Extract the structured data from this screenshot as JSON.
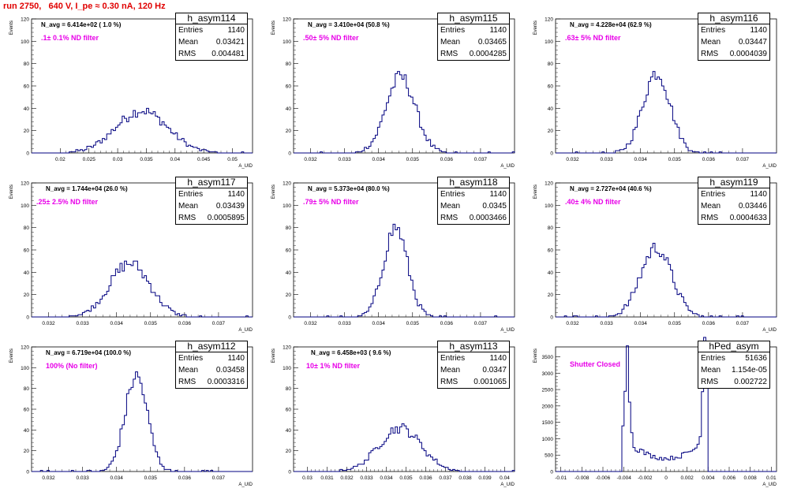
{
  "title": "run 2750,   640 V, I_pe ≈ 0.30 nA, 120 Hz",
  "colors": {
    "title": "#e00000",
    "annotation": "#e800e8",
    "hist": "#000080"
  },
  "axis_labels": {
    "y": "Events",
    "x": "A_UID"
  },
  "stats_labels": {
    "entries": "Entries",
    "mean": "Mean",
    "rms": "RMS"
  },
  "chart_data": [
    {
      "type": "bar",
      "name": "h_asym114",
      "entries": "1140",
      "mean": "0.03421",
      "rms": "0.004481",
      "navg": "N_avg = 6.414e+02 ( 1.0 %)",
      "filter": ".1± 0.1% ND filter",
      "xlim": [
        0.015,
        0.0535
      ],
      "ylim": [
        0,
        120
      ],
      "xticks": [
        0.02,
        0.025,
        0.03,
        0.035,
        0.04,
        0.045,
        0.05
      ],
      "xtick_labels": [
        "0.02",
        "0.025",
        "0.03",
        "0.035",
        "0.04",
        "0.045",
        "0.05"
      ],
      "yticks": [
        0,
        20,
        40,
        60,
        80,
        100,
        120
      ],
      "gauss_center": 0.0342,
      "gauss_sigma": 0.0045,
      "gauss_peak": 38
    },
    {
      "type": "bar",
      "name": "h_asym115",
      "entries": "1140",
      "mean": "0.03465",
      "rms": "0.0004285",
      "navg": "N_avg = 3.410e+04 (50.8 %)",
      "filter": ".50± 5% ND filter",
      "xlim": [
        0.0315,
        0.038
      ],
      "ylim": [
        0,
        120
      ],
      "xticks": [
        0.032,
        0.033,
        0.034,
        0.035,
        0.036,
        0.037
      ],
      "xtick_labels": [
        "0.032",
        "0.033",
        "0.034",
        "0.035",
        "0.036",
        "0.037"
      ],
      "yticks": [
        0,
        20,
        40,
        60,
        80,
        100,
        120
      ],
      "gauss_center": 0.03465,
      "gauss_sigma": 0.00043,
      "gauss_peak": 68
    },
    {
      "type": "bar",
      "name": "h_asym116",
      "entries": "1140",
      "mean": "0.03447",
      "rms": "0.0004039",
      "navg": "N_avg = 4.228e+04 (62.9 %)",
      "filter": ".63± 5% ND filter",
      "xlim": [
        0.0315,
        0.038
      ],
      "ylim": [
        0,
        120
      ],
      "xticks": [
        0.032,
        0.033,
        0.034,
        0.035,
        0.036,
        0.037
      ],
      "xtick_labels": [
        "0.032",
        "0.033",
        "0.034",
        "0.035",
        "0.036",
        "0.037"
      ],
      "yticks": [
        0,
        20,
        40,
        60,
        80,
        100,
        120
      ],
      "gauss_center": 0.03447,
      "gauss_sigma": 0.0004,
      "gauss_peak": 72
    },
    {
      "type": "bar",
      "name": "h_asym117",
      "entries": "1140",
      "mean": "0.03439",
      "rms": "0.0005895",
      "navg": "N_avg = 1.744e+04 (26.0 %)",
      "filter": ".25± 2.5% ND filter",
      "xlim": [
        0.0315,
        0.038
      ],
      "ylim": [
        0,
        120
      ],
      "xticks": [
        0.032,
        0.033,
        0.034,
        0.035,
        0.036,
        0.037
      ],
      "xtick_labels": [
        "0.032",
        "0.033",
        "0.034",
        "0.035",
        "0.036",
        "0.037"
      ],
      "yticks": [
        0,
        20,
        40,
        60,
        80,
        100,
        120
      ],
      "gauss_center": 0.03439,
      "gauss_sigma": 0.00059,
      "gauss_peak": 48
    },
    {
      "type": "bar",
      "name": "h_asym118",
      "entries": "1140",
      "mean": "0.0345",
      "rms": "0.0003466",
      "navg": "N_avg = 5.373e+04 (80.0 %)",
      "filter": ".79± 5% ND filter",
      "xlim": [
        0.0315,
        0.038
      ],
      "ylim": [
        0,
        120
      ],
      "xticks": [
        0.032,
        0.033,
        0.034,
        0.035,
        0.036,
        0.037
      ],
      "xtick_labels": [
        "0.032",
        "0.033",
        "0.034",
        "0.035",
        "0.036",
        "0.037"
      ],
      "yticks": [
        0,
        20,
        40,
        60,
        80,
        100,
        120
      ],
      "gauss_center": 0.0345,
      "gauss_sigma": 0.00035,
      "gauss_peak": 80
    },
    {
      "type": "bar",
      "name": "h_asym119",
      "entries": "1140",
      "mean": "0.03446",
      "rms": "0.0004633",
      "navg": "N_avg = 2.727e+04 (40.6 %)",
      "filter": ".40± 4% ND filter",
      "xlim": [
        0.0315,
        0.038
      ],
      "ylim": [
        0,
        120
      ],
      "xticks": [
        0.032,
        0.033,
        0.034,
        0.035,
        0.036,
        0.037
      ],
      "xtick_labels": [
        "0.032",
        "0.033",
        "0.034",
        "0.035",
        "0.036",
        "0.037"
      ],
      "yticks": [
        0,
        20,
        40,
        60,
        80,
        100,
        120
      ],
      "gauss_center": 0.03446,
      "gauss_sigma": 0.00046,
      "gauss_peak": 62
    },
    {
      "type": "bar",
      "name": "h_asym112",
      "entries": "1140",
      "mean": "0.03458",
      "rms": "0.0003316",
      "navg": "N_avg = 6.719e+04 (100.0 %)",
      "filter": "100% (No filter)",
      "xlim": [
        0.0315,
        0.038
      ],
      "ylim": [
        0,
        120
      ],
      "xticks": [
        0.032,
        0.033,
        0.034,
        0.035,
        0.036,
        0.037
      ],
      "xtick_labels": [
        "0.032",
        "0.033",
        "0.034",
        "0.035",
        "0.036",
        "0.037"
      ],
      "yticks": [
        0,
        20,
        40,
        60,
        80,
        100,
        120
      ],
      "gauss_center": 0.03458,
      "gauss_sigma": 0.00033,
      "gauss_peak": 92
    },
    {
      "type": "bar",
      "name": "h_asym113",
      "entries": "1140",
      "mean": "0.0347",
      "rms": "0.001065",
      "navg": "N_avg = 6.458e+03 ( 9.6 %)",
      "filter": "10± 1% ND filter",
      "xlim": [
        0.0293,
        0.0405
      ],
      "ylim": [
        0,
        120
      ],
      "xticks": [
        0.03,
        0.031,
        0.032,
        0.033,
        0.034,
        0.035,
        0.036,
        0.037,
        0.038,
        0.039,
        0.04
      ],
      "xtick_labels": [
        "0.03",
        "0.031",
        "0.032",
        "0.033",
        "0.034",
        "0.035",
        "0.036",
        "0.037",
        "0.038",
        "0.039",
        "0.04"
      ],
      "yticks": [
        0,
        20,
        40,
        60,
        80,
        100,
        120
      ],
      "gauss_center": 0.0347,
      "gauss_sigma": 0.00107,
      "gauss_peak": 42
    },
    {
      "type": "bar",
      "name": "hPed_asym",
      "entries": "51636",
      "mean": "1.154e-05",
      "rms": "0.002722",
      "navg": "",
      "filter": "Shutter Closed",
      "xlim": [
        -0.0105,
        0.0105
      ],
      "ylim": [
        0,
        3800
      ],
      "xticks": [
        -0.01,
        -0.008,
        -0.006,
        -0.004,
        -0.002,
        0,
        0.002,
        0.004,
        0.006,
        0.008,
        0.01
      ],
      "xtick_labels": [
        "-0.01",
        "-0.008",
        "-0.006",
        "-0.004",
        "-0.002",
        "0",
        "0.002",
        "0.004",
        "0.006",
        "0.008",
        "0.01"
      ],
      "yticks": [
        0,
        500,
        1000,
        1500,
        2000,
        2500,
        3000,
        3500
      ],
      "ped_peaks": [
        -0.0037,
        0.0037
      ],
      "ped_peak_heights": [
        3000,
        3600
      ],
      "ped_floor": 400
    }
  ]
}
